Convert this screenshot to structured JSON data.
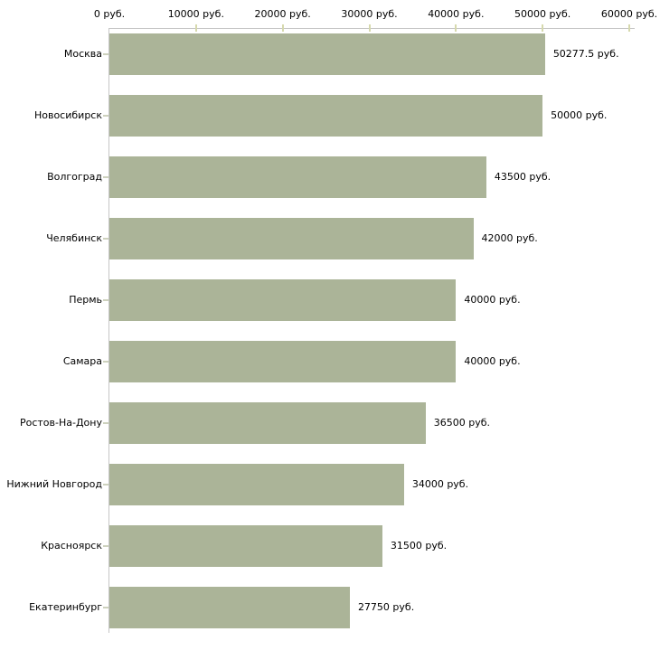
{
  "chart_data": {
    "type": "bar",
    "orientation": "horizontal",
    "title": "",
    "xlabel": "",
    "ylabel": "",
    "unit": "руб.",
    "grid": false,
    "legend": null,
    "categories": [
      "Москва",
      "Новосибирск",
      "Волгоград",
      "Челябинск",
      "Пермь",
      "Самара",
      "Ростов-На-Дону",
      "Нижний Новгород",
      "Красноярск",
      "Екатеринбург"
    ],
    "values": [
      50277.5,
      50000,
      43500,
      42000,
      40000,
      40000,
      36500,
      34000,
      31500,
      27750
    ],
    "value_labels": [
      "50277.5 руб.",
      "50000 руб.",
      "43500 руб.",
      "42000 руб.",
      "40000 руб.",
      "40000 руб.",
      "36500 руб.",
      "34000 руб.",
      "31500 руб.",
      "27750 руб."
    ],
    "xlim": [
      0,
      60000
    ],
    "x_ticks": [
      0,
      10000,
      20000,
      30000,
      40000,
      50000,
      60000
    ],
    "x_tick_labels": [
      "0 руб.",
      "10000 руб.",
      "20000 руб.",
      "30000 руб.",
      "40000 руб.",
      "50000 руб.",
      "60000 руб."
    ],
    "colors": {
      "bar": "#abb498",
      "axis_line": "#c6c6c6",
      "x_tick_mark": "#d6d9ad",
      "y_tick_mark": "#cdd1bd",
      "text": "#000000",
      "background": "#ffffff"
    }
  }
}
